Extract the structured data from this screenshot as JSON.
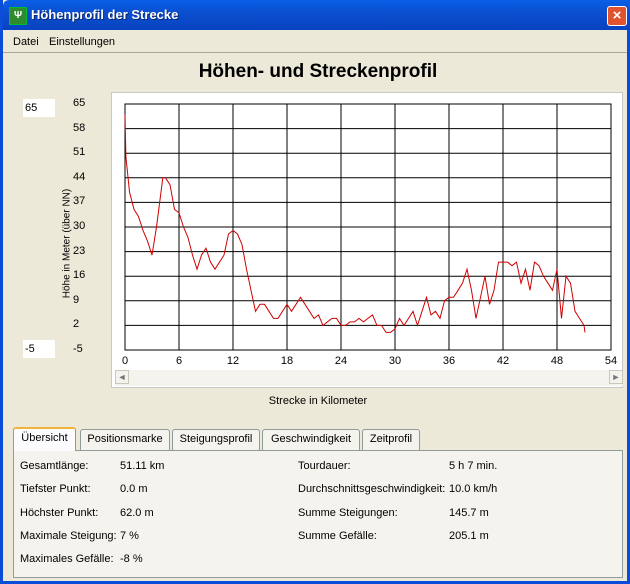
{
  "window": {
    "title": "Höhenprofil der Strecke",
    "icon": "app-icon",
    "close": "×"
  },
  "menu": [
    "Datei",
    "Einstellungen"
  ],
  "chart_title": "Höhen- und Streckenprofil",
  "y_axis": {
    "max_input": "65",
    "min_input": "-5",
    "label": "Höhe in Meter (über NN)",
    "ticks": [
      "65",
      "58",
      "51",
      "44",
      "37",
      "30",
      "23",
      "16",
      "9",
      "2",
      "-5"
    ]
  },
  "x_axis": {
    "label": "Strecke in Kilometer",
    "ticks": [
      "0",
      "6",
      "12",
      "18",
      "24",
      "30",
      "36",
      "42",
      "48",
      "54"
    ]
  },
  "chart_data": {
    "type": "line",
    "xlabel": "Strecke in Kilometer",
    "ylabel": "Höhe in Meter (über NN)",
    "xlim": [
      0,
      54
    ],
    "ylim": [
      -5,
      65
    ],
    "grid": true,
    "color": "#D00000",
    "series": [
      {
        "x": [
          0,
          0.1,
          0.3,
          0.5,
          1,
          1.5,
          2,
          2.5,
          3,
          3.5,
          4,
          4.2,
          4.5,
          5,
          5.5,
          6,
          6.5,
          7,
          7.5,
          8,
          8.5,
          9,
          9.5,
          10,
          10.5,
          11,
          11.5,
          12,
          12.5,
          13,
          13.5,
          14,
          14.5,
          15,
          15.5,
          16,
          16.5,
          17,
          17.5,
          18,
          18.5,
          19,
          19.5,
          20,
          20.5,
          21,
          21.5,
          22,
          22.5,
          23,
          23.5,
          24,
          24.5,
          25,
          25.5,
          26,
          26.5,
          27,
          27.5,
          28,
          28.5,
          29,
          29.5,
          30,
          30.5,
          31,
          31.5,
          32,
          32.5,
          33,
          33.5,
          34,
          34.5,
          35,
          35.5,
          36,
          36.5,
          37,
          37.5,
          38,
          38.5,
          39,
          39.5,
          40,
          40.5,
          41,
          41.5,
          42,
          42.5,
          43,
          43.5,
          44,
          44.5,
          45,
          45.5,
          46,
          46.5,
          47,
          47.5,
          48,
          48.5,
          49,
          49.5,
          50,
          50.5,
          51,
          51.11
        ],
        "y": [
          62,
          50,
          45,
          40,
          35,
          33,
          29,
          26,
          22,
          30,
          40,
          44,
          44,
          42,
          35,
          34,
          30,
          27,
          22,
          18,
          22,
          24,
          20,
          18,
          20,
          22,
          28,
          29,
          28,
          25,
          18,
          12,
          6,
          8,
          8,
          6,
          4,
          4,
          6,
          8,
          6,
          8,
          10,
          8,
          6,
          4,
          5,
          2,
          3,
          4,
          4,
          2,
          2,
          3,
          3,
          4,
          3,
          4,
          5,
          2,
          2,
          0,
          0,
          1,
          4,
          2,
          4,
          6,
          2,
          6,
          10,
          5,
          6,
          4,
          9,
          10,
          10,
          12,
          14,
          18,
          12,
          4,
          10,
          16,
          8,
          12,
          20,
          20,
          20,
          19,
          20,
          14,
          18,
          12,
          20,
          19,
          16,
          14,
          12,
          18,
          4,
          16,
          14,
          6,
          4,
          2,
          0
        ]
      }
    ]
  },
  "tabs": [
    "Übersicht",
    "Positionsmarke",
    "Steigungsprofil",
    "Geschwindigkeit",
    "Zeitprofil"
  ],
  "stats_left": [
    {
      "label": "Gesamtlänge:",
      "value": "51.11 km"
    },
    {
      "label": "Tiefster Punkt:",
      "value": "0.0 m"
    },
    {
      "label": "Höchster Punkt:",
      "value": "62.0 m"
    },
    {
      "label": "Maximale Steigung:",
      "value": "7 %"
    },
    {
      "label": "Maximales Gefälle:",
      "value": "-8 %"
    }
  ],
  "stats_right": [
    {
      "label": "Tourdauer:",
      "value": "5 h 7 min."
    },
    {
      "label": "Durchschnittsgeschwindigkeit:",
      "value": "10.0 km/h"
    },
    {
      "label": "Summe Steigungen:",
      "value": "145.7 m"
    },
    {
      "label": "Summe Gefälle:",
      "value": "205.1 m"
    }
  ]
}
